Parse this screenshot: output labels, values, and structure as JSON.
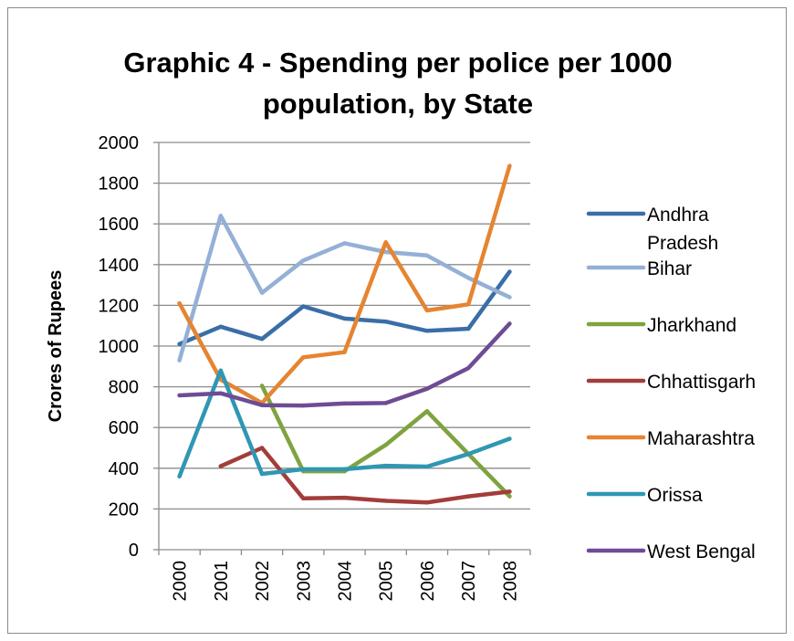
{
  "chart_data": {
    "type": "line",
    "title": "Graphic 4 - Spending per police per 1000 population, by State",
    "title_lines": [
      "Graphic 4 - Spending per police per 1000",
      "population, by State"
    ],
    "xlabel": "",
    "ylabel": "Crores of Rupees",
    "categories": [
      "2000",
      "2001",
      "2002",
      "2003",
      "2004",
      "2005",
      "2006",
      "2007",
      "2008"
    ],
    "ylim": [
      0,
      2000
    ],
    "yticks": [
      "0",
      "200",
      "400",
      "600",
      "800",
      "1000",
      "1200",
      "1400",
      "1600",
      "1800",
      "2000"
    ],
    "grid": true,
    "legend_position": "right",
    "series": [
      {
        "name": "Andhra Pradesh",
        "legend_lines": [
          "Andhra",
          "Pradesh"
        ],
        "color": "#3a6ea8",
        "values": [
          1010,
          1095,
          1035,
          1195,
          1135,
          1120,
          1075,
          1085,
          1365
        ]
      },
      {
        "name": "Bihar",
        "legend_lines": [
          "Bihar"
        ],
        "color": "#94b0d6",
        "values": [
          930,
          1640,
          1262,
          1420,
          1505,
          1462,
          1445,
          1335,
          1240
        ]
      },
      {
        "name": "Jharkhand",
        "legend_lines": [
          "Jharkhand"
        ],
        "color": "#7fa33e",
        "values": [
          null,
          null,
          805,
          385,
          385,
          515,
          680,
          470,
          262
        ]
      },
      {
        "name": "Chhattisgarh",
        "legend_lines": [
          "Chhattisgarh"
        ],
        "color": "#a33d3a",
        "values": [
          null,
          410,
          500,
          252,
          255,
          240,
          232,
          262,
          285
        ]
      },
      {
        "name": "Maharashtra",
        "legend_lines": [
          "Maharashtra"
        ],
        "color": "#e58531",
        "values": [
          1210,
          835,
          720,
          945,
          970,
          1510,
          1175,
          1205,
          1885
        ]
      },
      {
        "name": "Orissa",
        "legend_lines": [
          "Orissa"
        ],
        "color": "#2f97b3",
        "values": [
          360,
          880,
          372,
          395,
          395,
          412,
          408,
          470,
          545
        ]
      },
      {
        "name": "West Bengal",
        "legend_lines": [
          "West Bengal"
        ],
        "color": "#6e4c94",
        "values": [
          758,
          768,
          710,
          708,
          718,
          720,
          790,
          892,
          1110
        ]
      }
    ]
  }
}
